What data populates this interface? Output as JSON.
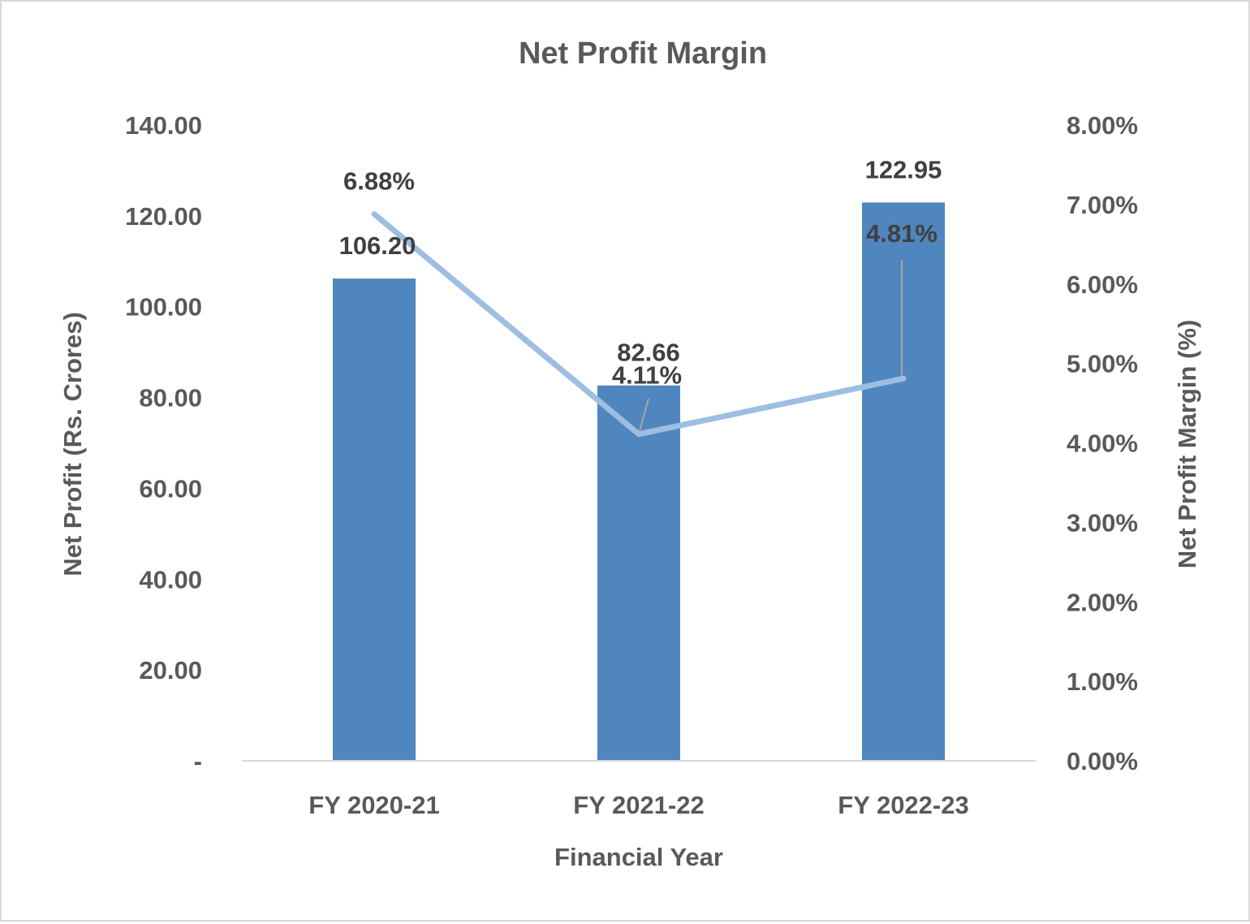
{
  "chart_data": {
    "type": "bar",
    "title": "Net Profit Margin",
    "xlabel": "Financial Year",
    "ylabel": "Net Profit (Rs. Crores)",
    "y2label": "Net Profit Margin (%)",
    "categories": [
      "FY 2020-21",
      "FY 2021-22",
      "FY 2022-23"
    ],
    "ylim": [
      0,
      140
    ],
    "y2lim": [
      0,
      0.08
    ],
    "y_ticks": [
      "-",
      "20.00",
      "40.00",
      "60.00",
      "80.00",
      "100.00",
      "120.00",
      "140.00"
    ],
    "y2_ticks": [
      "0.00%",
      "1.00%",
      "2.00%",
      "3.00%",
      "4.00%",
      "5.00%",
      "6.00%",
      "7.00%",
      "8.00%"
    ],
    "grid": false,
    "legend": "none",
    "series": [
      {
        "type": "bar",
        "axis": "left",
        "values": [
          106.2,
          82.66,
          122.95
        ],
        "labels": [
          "106.20",
          "82.66",
          "122.95"
        ],
        "color": "#4f86bd"
      },
      {
        "type": "line",
        "axis": "right",
        "values": [
          0.0688,
          0.0411,
          0.0481
        ],
        "labels": [
          "6.88%",
          "4.11%",
          "4.81%"
        ],
        "color": "#9dbde3"
      }
    ],
    "colors": {
      "axis": "#d9d9d9",
      "text": "#595959",
      "labels": "#404040",
      "leader": "#a6a6a6"
    }
  }
}
